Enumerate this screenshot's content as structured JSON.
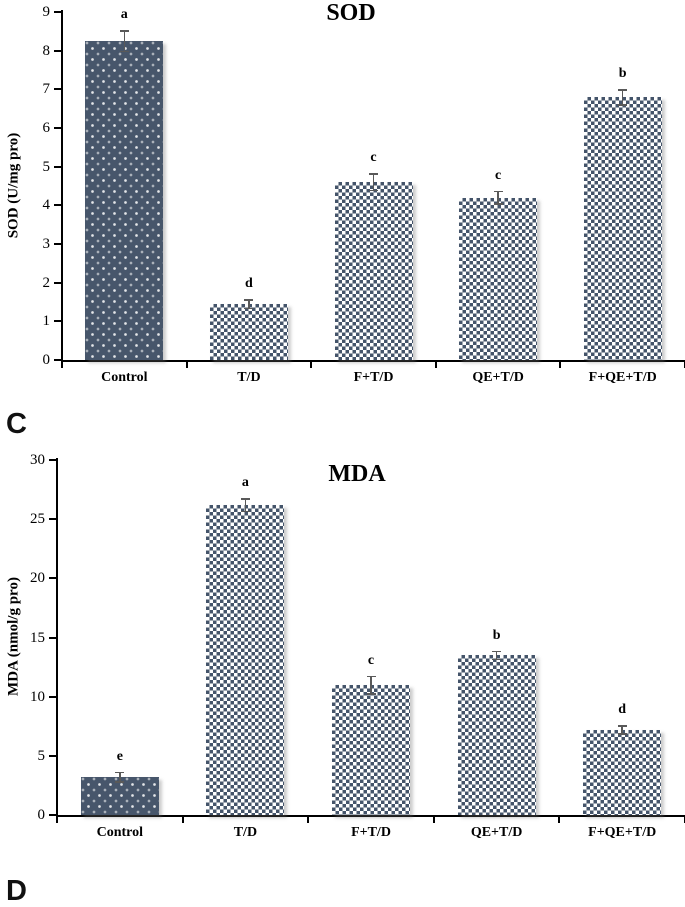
{
  "panels": [
    {
      "label": "C"
    },
    {
      "label": "D"
    }
  ],
  "colors": {
    "bar_solid": "#47566B",
    "pattern_dark": "#44546A",
    "pattern_light": "#ffffff",
    "error_bar": "#595959",
    "axis": "#000000"
  },
  "chart_data": [
    {
      "type": "bar",
      "title": "SOD",
      "xlabel": "",
      "ylabel": "SOD (U/mg pro)",
      "categories": [
        "Control",
        "T/D",
        "F+T/D",
        "QE+T/D",
        "F+QE+T/D"
      ],
      "values": [
        8.25,
        1.45,
        4.6,
        4.2,
        6.8
      ],
      "errors": [
        0.25,
        0.1,
        0.2,
        0.15,
        0.18
      ],
      "sig_letters": [
        "a",
        "d",
        "c",
        "c",
        "b"
      ],
      "ylim": [
        0,
        9
      ],
      "ytick_step": 1,
      "bar_styles": [
        "dots",
        "checker",
        "checker",
        "checker",
        "checker"
      ],
      "grid": false,
      "legend": "none"
    },
    {
      "type": "bar",
      "title": "MDA",
      "xlabel": "",
      "ylabel": "MDA (nmol/g pro)",
      "categories": [
        "Control",
        "T/D",
        "F+T/D",
        "QE+T/D",
        "F+QE+T/D"
      ],
      "values": [
        3.2,
        26.2,
        11.0,
        13.5,
        7.2
      ],
      "errors": [
        0.35,
        0.5,
        0.7,
        0.3,
        0.3
      ],
      "sig_letters": [
        "e",
        "a",
        "c",
        "b",
        "d"
      ],
      "ylim": [
        0,
        30
      ],
      "ytick_step": 5,
      "bar_styles": [
        "dots",
        "checker",
        "checker",
        "checker",
        "checker"
      ],
      "grid": false,
      "legend": "none"
    }
  ]
}
